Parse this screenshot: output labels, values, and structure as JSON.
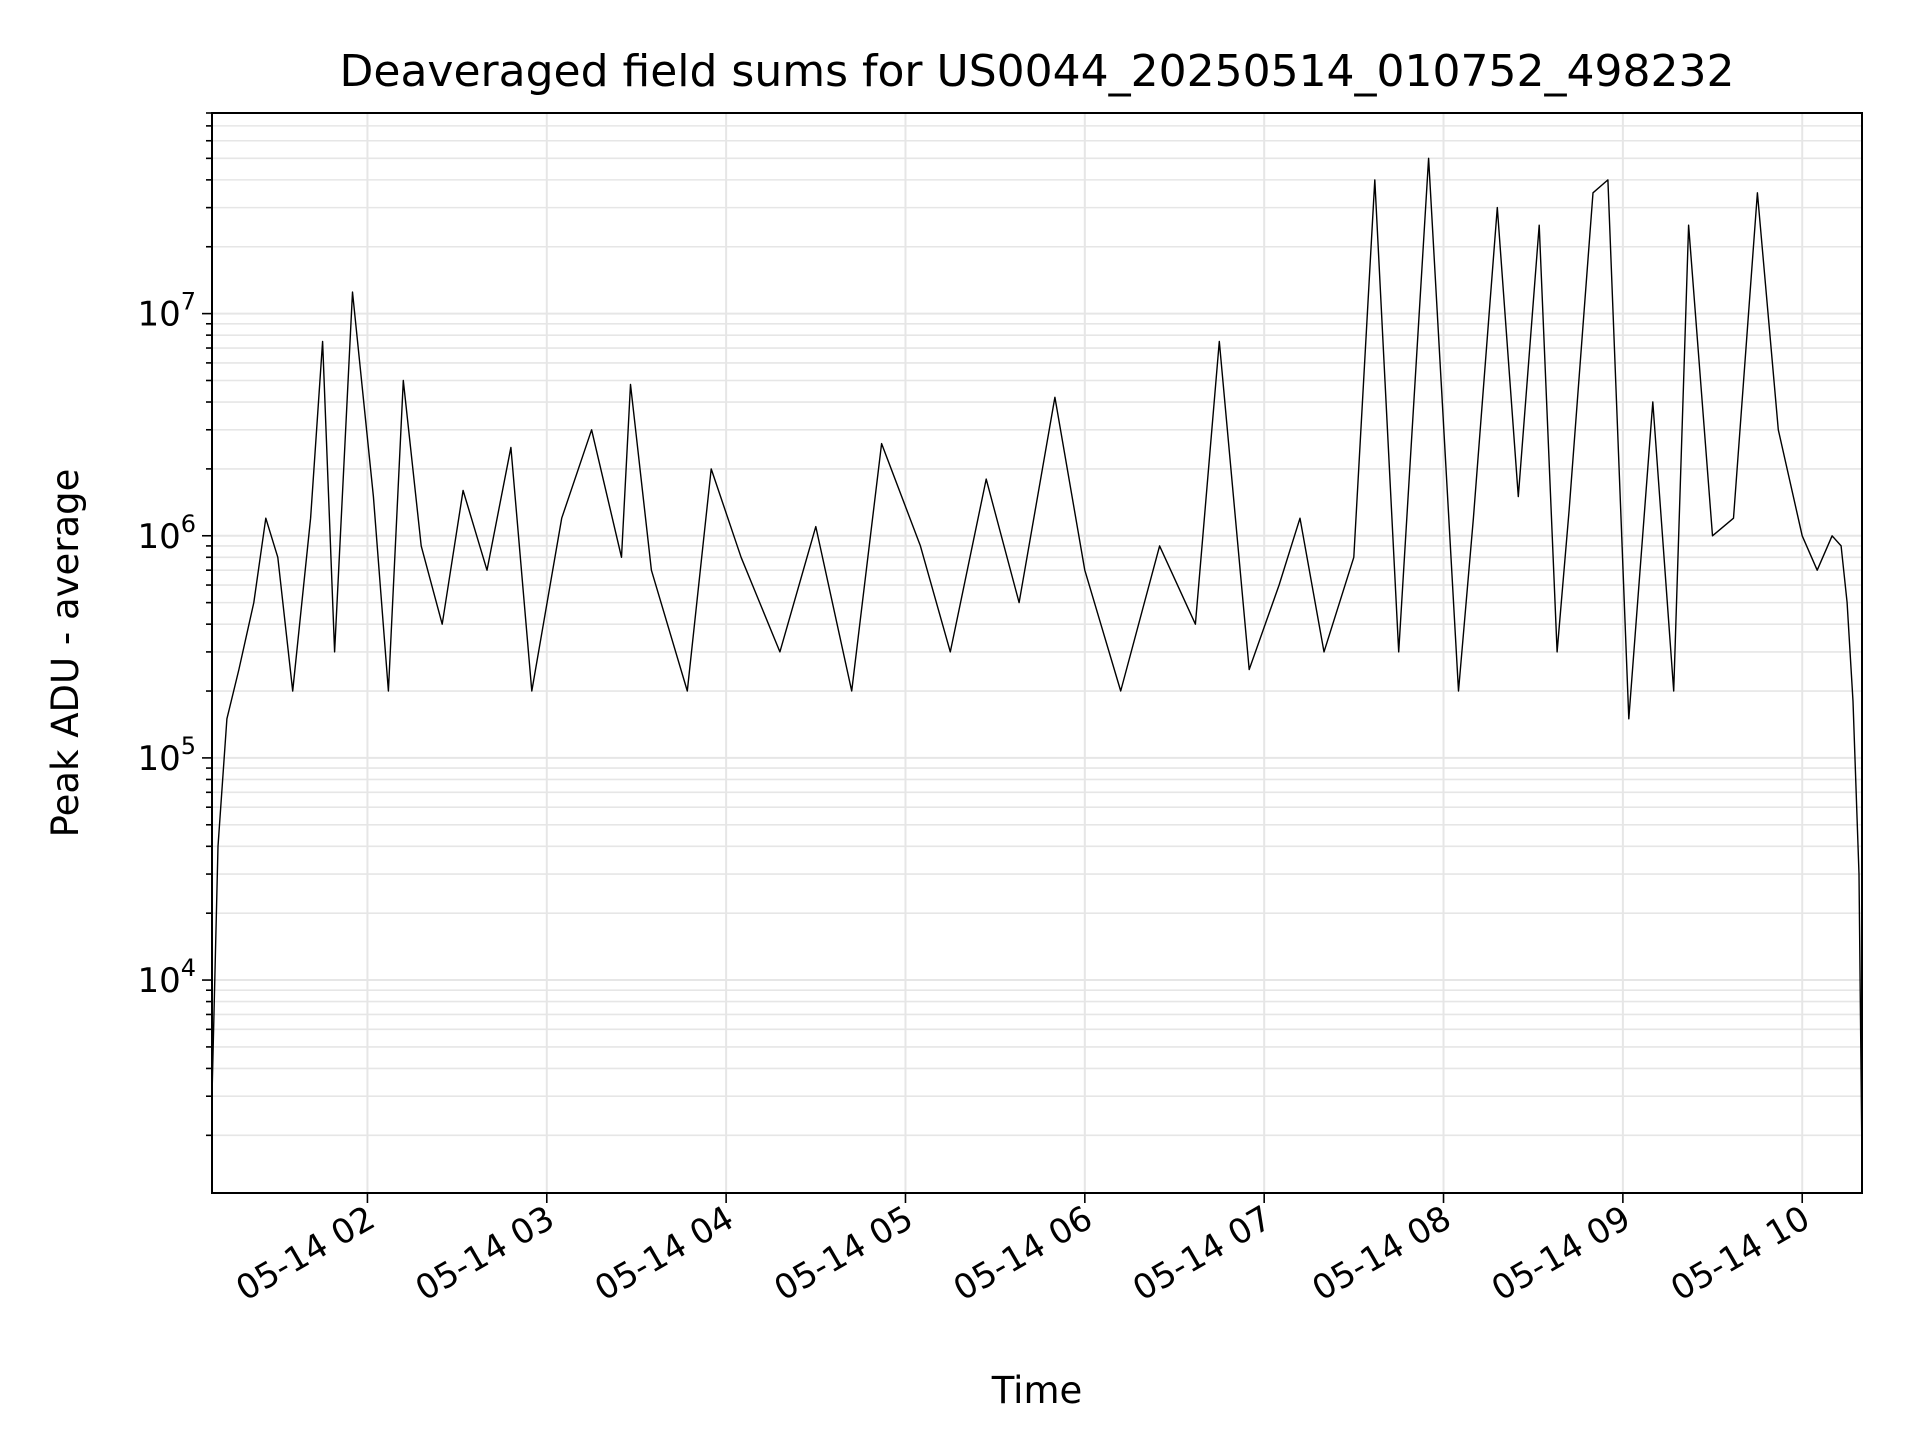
{
  "chart_data": {
    "type": "line",
    "title": "Deaveraged field sums for US0044_20250514_010752_498232",
    "xlabel": "Time",
    "ylabel": "Peak ADU - average",
    "yscale": "log",
    "ylim": [
      1100,
      80000000
    ],
    "xlim": [
      "2025-05-14 01:08",
      "2025-05-14 10:20"
    ],
    "grid": true,
    "line_color": "#000000",
    "x_ticks": [
      "05-14 02",
      "05-14 03",
      "05-14 04",
      "05-14 05",
      "05-14 06",
      "05-14 07",
      "05-14 08",
      "05-14 09",
      "05-14 10"
    ],
    "y_ticks": [
      {
        "base": "10",
        "exp": "4",
        "value": 10000
      },
      {
        "base": "10",
        "exp": "5",
        "value": 100000
      },
      {
        "base": "10",
        "exp": "6",
        "value": 1000000
      },
      {
        "base": "10",
        "exp": "7",
        "value": 10000000
      }
    ],
    "series": [
      {
        "x": [
          "2025-05-14 01:08",
          "2025-05-14 01:10",
          "2025-05-14 01:13",
          "2025-05-14 01:17",
          "2025-05-14 01:22",
          "2025-05-14 01:26",
          "2025-05-14 01:30",
          "2025-05-14 01:35",
          "2025-05-14 01:41",
          "2025-05-14 01:45",
          "2025-05-14 01:49",
          "2025-05-14 01:55",
          "2025-05-14 02:02",
          "2025-05-14 02:07",
          "2025-05-14 02:12",
          "2025-05-14 02:18",
          "2025-05-14 02:25",
          "2025-05-14 02:32",
          "2025-05-14 02:40",
          "2025-05-14 02:48",
          "2025-05-14 02:55",
          "2025-05-14 03:05",
          "2025-05-14 03:15",
          "2025-05-14 03:25",
          "2025-05-14 03:28",
          "2025-05-14 03:35",
          "2025-05-14 03:47",
          "2025-05-14 03:55",
          "2025-05-14 04:05",
          "2025-05-14 04:18",
          "2025-05-14 04:30",
          "2025-05-14 04:42",
          "2025-05-14 04:52",
          "2025-05-14 05:05",
          "2025-05-14 05:15",
          "2025-05-14 05:27",
          "2025-05-14 05:38",
          "2025-05-14 05:50",
          "2025-05-14 06:00",
          "2025-05-14 06:12",
          "2025-05-14 06:25",
          "2025-05-14 06:37",
          "2025-05-14 06:45",
          "2025-05-14 06:55",
          "2025-05-14 07:05",
          "2025-05-14 07:12",
          "2025-05-14 07:20",
          "2025-05-14 07:30",
          "2025-05-14 07:37",
          "2025-05-14 07:45",
          "2025-05-14 07:55",
          "2025-05-14 08:05",
          "2025-05-14 08:10",
          "2025-05-14 08:18",
          "2025-05-14 08:25",
          "2025-05-14 08:32",
          "2025-05-14 08:38",
          "2025-05-14 08:42",
          "2025-05-14 08:50",
          "2025-05-14 08:55",
          "2025-05-14 09:02",
          "2025-05-14 09:10",
          "2025-05-14 09:17",
          "2025-05-14 09:22",
          "2025-05-14 09:30",
          "2025-05-14 09:37",
          "2025-05-14 09:45",
          "2025-05-14 09:52",
          "2025-05-14 10:00",
          "2025-05-14 10:05",
          "2025-05-14 10:10",
          "2025-05-14 10:13",
          "2025-05-14 10:15",
          "2025-05-14 10:17",
          "2025-05-14 10:19",
          "2025-05-14 10:20"
        ],
        "y": [
          3000,
          40000,
          150000,
          250000,
          500000,
          1200000,
          800000,
          200000,
          1200000,
          7500000,
          300000,
          12500000,
          1500000,
          200000,
          5000000,
          900000,
          400000,
          1600000,
          700000,
          2500000,
          200000,
          1200000,
          3000000,
          800000,
          4800000,
          700000,
          200000,
          2000000,
          800000,
          300000,
          1100000,
          200000,
          2600000,
          900000,
          300000,
          1800000,
          500000,
          4200000,
          700000,
          200000,
          900000,
          400000,
          7500000,
          250000,
          600000,
          1200000,
          300000,
          800000,
          40000000,
          300000,
          50000000,
          200000,
          1200000,
          30000000,
          1500000,
          25000000,
          300000,
          1300000,
          35000000,
          40000000,
          150000,
          4000000,
          200000,
          25000000,
          1000000,
          1200000,
          35000000,
          3000000,
          1000000,
          700000,
          1000000,
          900000,
          500000,
          180000,
          30000,
          1500
        ]
      }
    ]
  }
}
